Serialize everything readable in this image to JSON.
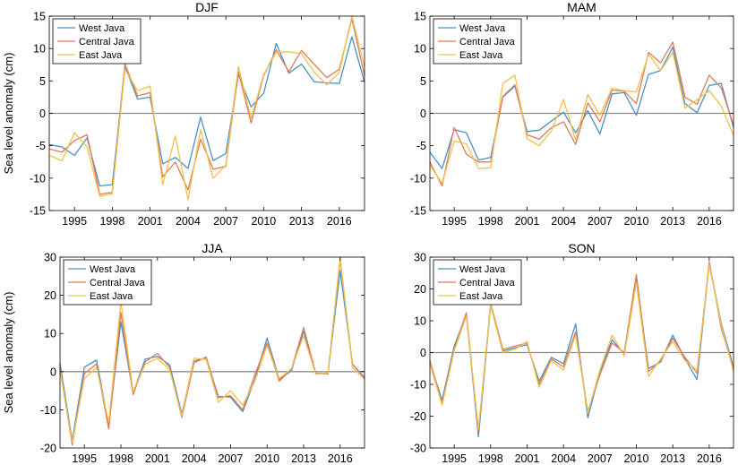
{
  "figure": {
    "series_colors": [
      "#4a90c9",
      "#e07b58",
      "#efc24a"
    ],
    "zero_line_color": "#8c8c8c"
  },
  "chart_data": [
    {
      "type": "line",
      "title": "DJF",
      "ylabel": "Sea level anomaly (cm)",
      "xlim": [
        1993,
        2018
      ],
      "ylim": [
        -15,
        15
      ],
      "yticks": [
        -15,
        -10,
        -5,
        0,
        5,
        10,
        15
      ],
      "xticks": [
        1995,
        1998,
        2001,
        2004,
        2007,
        2010,
        2013,
        2016
      ],
      "grid": false,
      "legend": "top-left",
      "x": [
        1993,
        1994,
        1995,
        1996,
        1997,
        1998,
        1999,
        2000,
        2001,
        2002,
        2003,
        2004,
        2005,
        2006,
        2007,
        2008,
        2009,
        2010,
        2011,
        2012,
        2013,
        2014,
        2015,
        2016,
        2017,
        2018
      ],
      "series": [
        {
          "name": "West Java",
          "values": [
            -4.8,
            -5.2,
            -6.5,
            -3.8,
            -11.2,
            -11.0,
            7.3,
            2.2,
            2.5,
            -7.8,
            -6.8,
            -8.5,
            -0.6,
            -7.3,
            -6.2,
            6.0,
            1.0,
            3.1,
            10.8,
            6.2,
            7.6,
            4.9,
            4.7,
            4.6,
            11.8,
            4.8
          ]
        },
        {
          "name": "Central Java",
          "values": [
            -5.5,
            -6.0,
            -4.2,
            -3.3,
            -12.5,
            -12.2,
            7.6,
            2.7,
            3.2,
            -9.8,
            -7.5,
            -11.8,
            -4.0,
            -8.6,
            -8.2,
            6.4,
            -1.5,
            5.8,
            9.8,
            6.4,
            9.7,
            7.6,
            5.5,
            6.8,
            14.6,
            5.8
          ]
        },
        {
          "name": "East Java",
          "values": [
            -6.5,
            -7.3,
            -3.0,
            -5.2,
            -12.8,
            -12.4,
            6.8,
            3.5,
            4.2,
            -11.0,
            -3.5,
            -13.3,
            -2.5,
            -10.0,
            -8.0,
            7.2,
            -0.8,
            6.0,
            9.4,
            9.5,
            9.2,
            6.4,
            4.4,
            6.3,
            15.0,
            7.2
          ]
        }
      ]
    },
    {
      "type": "line",
      "title": "MAM",
      "ylabel": "",
      "xlim": [
        1993,
        2018
      ],
      "ylim": [
        -15,
        15
      ],
      "yticks": [
        -15,
        -10,
        -5,
        0,
        5,
        10,
        15
      ],
      "xticks": [
        1995,
        1998,
        2001,
        2004,
        2007,
        2010,
        2013,
        2016
      ],
      "grid": false,
      "legend": "top-left",
      "x": [
        1993,
        1994,
        1995,
        1996,
        1997,
        1998,
        1999,
        2000,
        2001,
        2002,
        2003,
        2004,
        2005,
        2006,
        2007,
        2008,
        2009,
        2010,
        2011,
        2012,
        2013,
        2014,
        2015,
        2016,
        2017,
        2018
      ],
      "series": [
        {
          "name": "West Java",
          "values": [
            -6.0,
            -8.5,
            -2.5,
            -3.0,
            -7.2,
            -6.8,
            2.5,
            4.2,
            -2.8,
            -2.6,
            -1.2,
            0.2,
            -3.0,
            0.4,
            -3.2,
            3.0,
            3.2,
            -0.3,
            6.0,
            6.6,
            10.2,
            1.5,
            0.1,
            4.3,
            4.6,
            -2.2
          ]
        },
        {
          "name": "Central Java",
          "values": [
            -7.5,
            -11.2,
            -2.2,
            -6.3,
            -7.5,
            -7.5,
            2.6,
            4.4,
            -3.3,
            -4.0,
            -2.2,
            -1.3,
            -4.8,
            1.6,
            -1.3,
            3.6,
            3.4,
            1.5,
            9.4,
            7.8,
            11.0,
            2.5,
            1.4,
            5.9,
            3.9,
            -1.8
          ]
        },
        {
          "name": "East Java",
          "values": [
            -8.0,
            -10.8,
            -4.3,
            -4.7,
            -8.5,
            -8.4,
            4.6,
            5.9,
            -3.9,
            -5.0,
            -2.7,
            2.1,
            -4.1,
            2.9,
            -0.3,
            3.9,
            3.5,
            3.3,
            9.1,
            6.6,
            9.4,
            0.8,
            2.1,
            3.5,
            1.1,
            -3.4
          ]
        }
      ]
    },
    {
      "type": "line",
      "title": "JJA",
      "ylabel": "Sea level anomaly (cm)",
      "xlim": [
        1993,
        2018
      ],
      "ylim": [
        -20,
        30
      ],
      "yticks": [
        -20,
        -10,
        0,
        10,
        20,
        30
      ],
      "xticks": [
        1995,
        1998,
        2001,
        2004,
        2007,
        2010,
        2013,
        2016
      ],
      "grid": false,
      "legend": "top-left",
      "x": [
        1993,
        1994,
        1995,
        1996,
        1997,
        1998,
        1999,
        2000,
        2001,
        2002,
        2003,
        2004,
        2005,
        2006,
        2007,
        2008,
        2009,
        2010,
        2011,
        2012,
        2013,
        2014,
        2015,
        2016,
        2017,
        2018
      ],
      "series": [
        {
          "name": "West Java",
          "values": [
            2.2,
            -18.0,
            1.2,
            3.0,
            -14.0,
            13.0,
            -5.6,
            3.3,
            4.0,
            1.8,
            -11.0,
            2.8,
            3.6,
            -6.5,
            -6.7,
            -10.5,
            -2.0,
            8.8,
            -2.0,
            0.2,
            10.6,
            -0.5,
            -0.4,
            26.5,
            2.0,
            -1.5
          ]
        },
        {
          "name": "Central Java",
          "values": [
            1.0,
            -19.2,
            -0.5,
            2.0,
            -15.0,
            15.5,
            -6.0,
            2.6,
            4.8,
            1.1,
            -12.0,
            2.3,
            3.8,
            -6.8,
            -6.3,
            -10.0,
            -0.8,
            7.5,
            -2.5,
            0.6,
            11.6,
            -0.5,
            -0.6,
            29.5,
            2.0,
            -1.8
          ]
        },
        {
          "name": "East Java",
          "values": [
            0.5,
            -18.5,
            -1.8,
            1.0,
            -13.2,
            18.3,
            -5.2,
            2.0,
            3.5,
            0.4,
            -11.5,
            3.5,
            3.2,
            -8.0,
            -5.0,
            -8.8,
            -2.5,
            6.8,
            -1.8,
            0.8,
            9.4,
            -0.7,
            -0.3,
            30.0,
            1.2,
            -2.0
          ]
        }
      ]
    },
    {
      "type": "line",
      "title": "SON",
      "ylabel": "",
      "xlim": [
        1993,
        2018
      ],
      "ylim": [
        -30,
        30
      ],
      "yticks": [
        -30,
        -20,
        -10,
        0,
        10,
        20,
        30
      ],
      "xticks": [
        1995,
        1998,
        2001,
        2004,
        2007,
        2010,
        2013,
        2016
      ],
      "grid": false,
      "legend": "top-left",
      "x": [
        1993,
        1994,
        1995,
        1996,
        1997,
        1998,
        1999,
        2000,
        2001,
        2002,
        2003,
        2004,
        2005,
        2006,
        2007,
        2008,
        2009,
        2010,
        2011,
        2012,
        2013,
        2014,
        2015,
        2016,
        2017,
        2018
      ],
      "series": [
        {
          "name": "West Java",
          "values": [
            -3.0,
            -15.0,
            2.0,
            12.0,
            -26.5,
            14.8,
            0.5,
            1.5,
            2.5,
            -9.0,
            -1.5,
            -3.5,
            9.0,
            -20.5,
            -6.0,
            4.0,
            -0.5,
            23.0,
            -5.0,
            -3.0,
            5.5,
            -2.0,
            -8.5,
            28.0,
            9.0,
            -4.5
          ]
        },
        {
          "name": "Central Java",
          "values": [
            -2.5,
            -16.0,
            1.0,
            12.5,
            -25.0,
            15.5,
            1.0,
            2.0,
            3.0,
            -10.0,
            -2.0,
            -4.5,
            6.5,
            -18.5,
            -7.0,
            3.0,
            0.0,
            24.5,
            -6.0,
            -2.5,
            4.5,
            -1.5,
            -6.5,
            28.5,
            7.5,
            -5.0
          ]
        },
        {
          "name": "East Java",
          "values": [
            -3.5,
            -16.5,
            0.5,
            11.5,
            -24.0,
            15.0,
            0.0,
            1.0,
            3.5,
            -11.0,
            -2.5,
            -5.5,
            5.5,
            -19.0,
            -5.5,
            5.5,
            -1.0,
            22.0,
            -7.5,
            -2.0,
            3.5,
            -2.5,
            -5.5,
            27.5,
            8.5,
            -6.0
          ]
        }
      ]
    }
  ]
}
